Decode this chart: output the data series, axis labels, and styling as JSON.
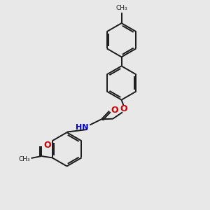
{
  "bg_color": "#e8e8e8",
  "line_color": "#1a1a1a",
  "oxygen_color": "#cc0000",
  "nitrogen_color": "#0000cc",
  "lw": 1.4,
  "figsize": [
    3.0,
    3.0
  ],
  "dpi": 100,
  "xlim": [
    0,
    10
  ],
  "ylim": [
    0,
    10
  ]
}
